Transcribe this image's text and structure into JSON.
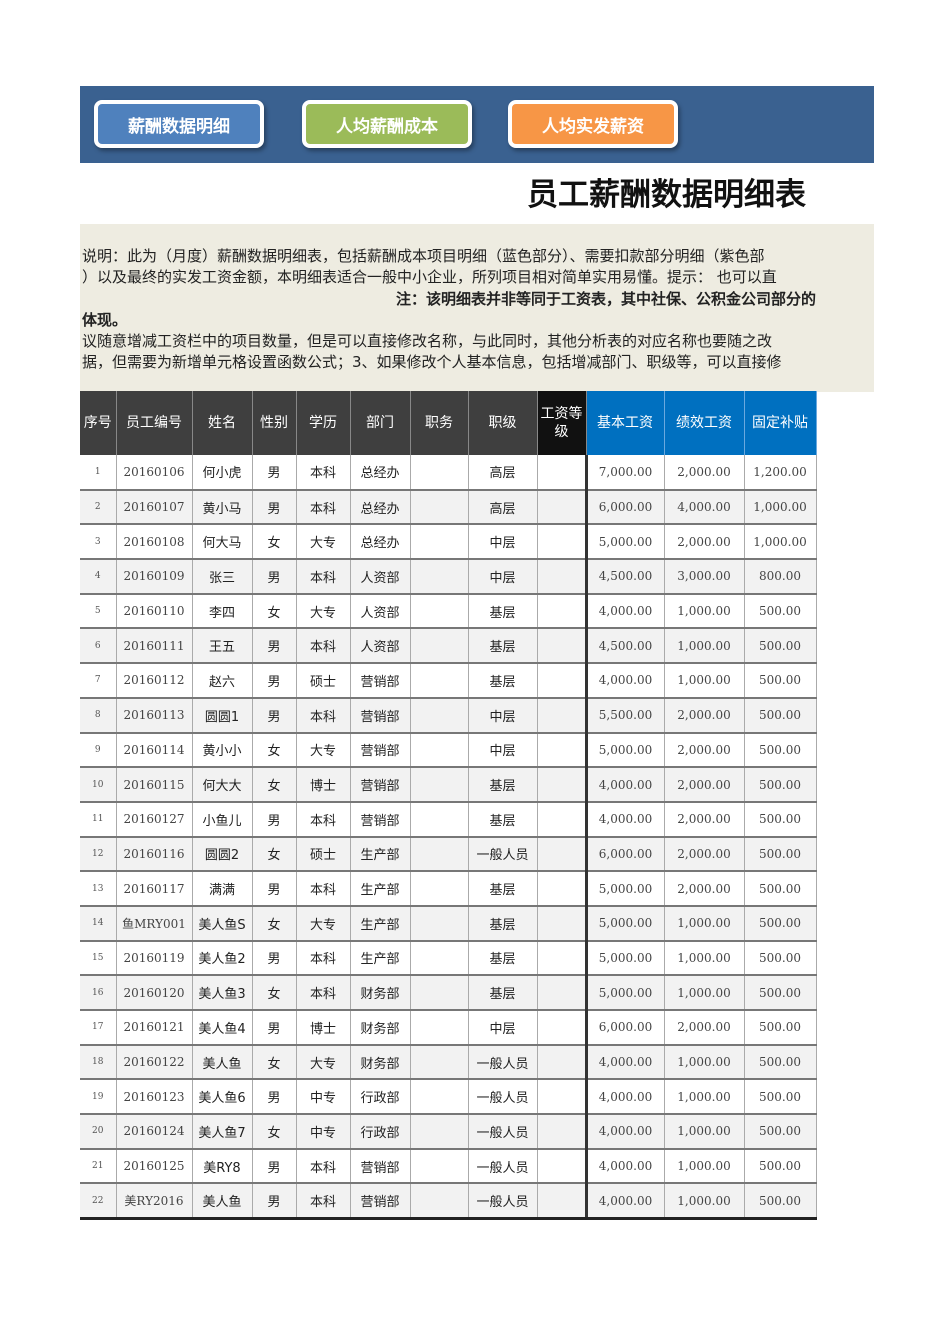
{
  "nav": [
    {
      "label": "薪酬数据明细",
      "color": "#4f81bd"
    },
    {
      "label": "人均薪酬成本",
      "color": "#9bbb59"
    },
    {
      "label": "人均实发薪资",
      "color": "#f79646"
    }
  ],
  "title": "员工薪酬数据明细表（含",
  "notes": [
    "说明：此为（月度）薪酬数据明细表，包括薪酬成本项目明细（蓝色部分）、需要扣款部分明细（紫色部",
    "）以及最终的实发工资金额，本明细表适合一般中小企业，所列项目相对简单实用易懂。提示： 也可以直",
    "注：该明细表并非等同于工资表，其中社保、公积金公司部分的",
    "体现。",
    "议随意增减工资栏中的项目数量，但是可以直接修改名称，与此同时，其他分析表的对应名称也要随之改",
    "据，但需要为新增单元格设置函数公式；3、如果修改个人基本信息，包括增减部门、职级等，可以直接修"
  ],
  "table": {
    "headers": [
      "序号",
      "员工编号",
      "姓名",
      "性别",
      "学历",
      "部门",
      "职务",
      "职级",
      "工资等级",
      "基本工资",
      "绩效工资",
      "固定补贴"
    ],
    "rows": [
      [
        "1",
        "20160106",
        "何小虎",
        "男",
        "本科",
        "总经办",
        "",
        "高层",
        "",
        "7,000.00",
        "2,000.00",
        "1,200.00"
      ],
      [
        "2",
        "20160107",
        "黄小马",
        "男",
        "本科",
        "总经办",
        "",
        "高层",
        "",
        "6,000.00",
        "4,000.00",
        "1,000.00"
      ],
      [
        "3",
        "20160108",
        "何大马",
        "女",
        "大专",
        "总经办",
        "",
        "中层",
        "",
        "5,000.00",
        "2,000.00",
        "1,000.00"
      ],
      [
        "4",
        "20160109",
        "张三",
        "男",
        "本科",
        "人资部",
        "",
        "中层",
        "",
        "4,500.00",
        "3,000.00",
        "800.00"
      ],
      [
        "5",
        "20160110",
        "李四",
        "女",
        "大专",
        "人资部",
        "",
        "基层",
        "",
        "4,000.00",
        "1,000.00",
        "500.00"
      ],
      [
        "6",
        "20160111",
        "王五",
        "男",
        "本科",
        "人资部",
        "",
        "基层",
        "",
        "4,500.00",
        "1,000.00",
        "500.00"
      ],
      [
        "7",
        "20160112",
        "赵六",
        "男",
        "硕士",
        "营销部",
        "",
        "基层",
        "",
        "4,000.00",
        "1,000.00",
        "500.00"
      ],
      [
        "8",
        "20160113",
        "圆圆1",
        "男",
        "本科",
        "营销部",
        "",
        "中层",
        "",
        "5,500.00",
        "2,000.00",
        "500.00"
      ],
      [
        "9",
        "20160114",
        "黄小小",
        "女",
        "大专",
        "营销部",
        "",
        "中层",
        "",
        "5,000.00",
        "2,000.00",
        "500.00"
      ],
      [
        "10",
        "20160115",
        "何大大",
        "女",
        "博士",
        "营销部",
        "",
        "基层",
        "",
        "4,000.00",
        "2,000.00",
        "500.00"
      ],
      [
        "11",
        "20160127",
        "小鱼儿",
        "男",
        "本科",
        "营销部",
        "",
        "基层",
        "",
        "4,000.00",
        "2,000.00",
        "500.00"
      ],
      [
        "12",
        "20160116",
        "圆圆2",
        "女",
        "硕士",
        "生产部",
        "",
        "一般人员",
        "",
        "6,000.00",
        "2,000.00",
        "500.00"
      ],
      [
        "13",
        "20160117",
        "满满",
        "男",
        "本科",
        "生产部",
        "",
        "基层",
        "",
        "5,000.00",
        "2,000.00",
        "500.00"
      ],
      [
        "14",
        "鱼MRY001",
        "美人鱼S",
        "女",
        "大专",
        "生产部",
        "",
        "基层",
        "",
        "5,000.00",
        "1,000.00",
        "500.00"
      ],
      [
        "15",
        "20160119",
        "美人鱼2",
        "男",
        "本科",
        "生产部",
        "",
        "基层",
        "",
        "5,000.00",
        "1,000.00",
        "500.00"
      ],
      [
        "16",
        "20160120",
        "美人鱼3",
        "女",
        "本科",
        "财务部",
        "",
        "基层",
        "",
        "5,000.00",
        "1,000.00",
        "500.00"
      ],
      [
        "17",
        "20160121",
        "美人鱼4",
        "男",
        "博士",
        "财务部",
        "",
        "中层",
        "",
        "6,000.00",
        "2,000.00",
        "500.00"
      ],
      [
        "18",
        "20160122",
        "美人鱼",
        "女",
        "大专",
        "财务部",
        "",
        "一般人员",
        "",
        "4,000.00",
        "1,000.00",
        "500.00"
      ],
      [
        "19",
        "20160123",
        "美人鱼6",
        "男",
        "中专",
        "行政部",
        "",
        "一般人员",
        "",
        "4,000.00",
        "1,000.00",
        "500.00"
      ],
      [
        "20",
        "20160124",
        "美人鱼7",
        "女",
        "中专",
        "行政部",
        "",
        "一般人员",
        "",
        "4,000.00",
        "1,000.00",
        "500.00"
      ],
      [
        "21",
        "20160125",
        "美RY8",
        "男",
        "本科",
        "营销部",
        "",
        "一般人员",
        "",
        "4,000.00",
        "1,000.00",
        "500.00"
      ],
      [
        "22",
        "美RY2016",
        "美人鱼",
        "男",
        "本科",
        "营销部",
        "",
        "一般人员",
        "",
        "4,000.00",
        "1,000.00",
        "500.00"
      ]
    ]
  }
}
